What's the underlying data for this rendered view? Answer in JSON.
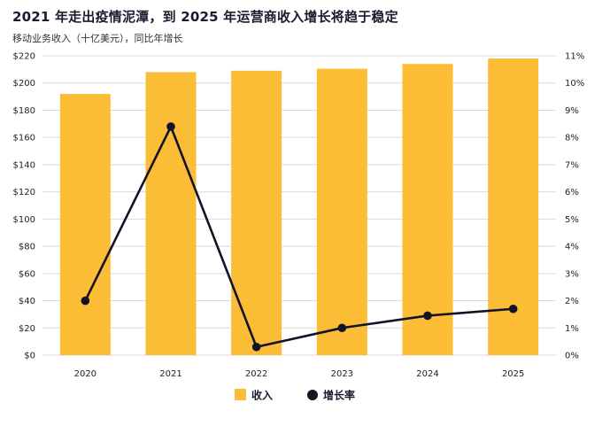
{
  "header": {
    "title": "2021 年走出疫情泥潭，到 2025 年运营商收入增长将趋于稳定",
    "subtitle": "移动业务收入（十亿美元），同比年增长"
  },
  "colors": {
    "bar": "#fbbc36",
    "line": "#131327",
    "grid": "#d9d9d9"
  },
  "chart_data": {
    "type": "bar+line",
    "title": "2021 年走出疫情泥潭，到 2025 年运营商收入增长将趋于稳定",
    "subtitle": "移动业务收入（十亿美元），同比年增长",
    "categories": [
      "2020",
      "2021",
      "2022",
      "2023",
      "2024",
      "2025"
    ],
    "series": [
      {
        "name": "收入",
        "type": "bar",
        "axis": "left",
        "values": [
          192,
          208,
          209,
          210.5,
          214,
          218
        ]
      },
      {
        "name": "增长率",
        "type": "line",
        "axis": "right",
        "values": [
          2.0,
          8.4,
          0.3,
          1.0,
          1.45,
          1.7
        ]
      }
    ],
    "y_left": {
      "min": 0,
      "max": 220,
      "step": 20,
      "tick_labels": [
        "$0",
        "$20",
        "$40",
        "$60",
        "$80",
        "$100",
        "$120",
        "$140",
        "$160",
        "$180",
        "$200",
        "$220"
      ]
    },
    "y_right": {
      "min": 0,
      "max": 11,
      "step": 1,
      "tick_labels": [
        "0%",
        "1%",
        "2%",
        "3%",
        "4%",
        "5%",
        "6%",
        "7%",
        "8%",
        "9%",
        "10%",
        "11%"
      ]
    },
    "legend": {
      "position": "bottom",
      "items": [
        "收入",
        "增长率"
      ]
    },
    "grid": true
  }
}
